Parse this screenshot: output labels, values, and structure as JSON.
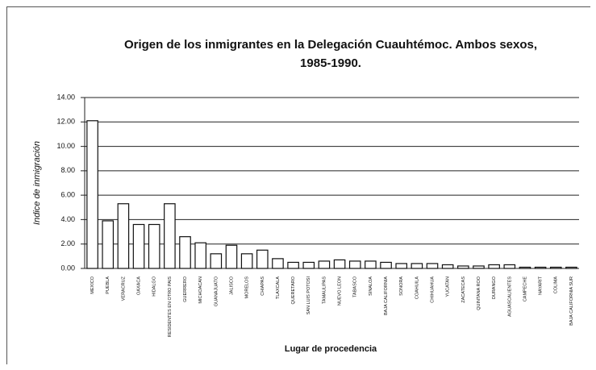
{
  "chart_data": {
    "type": "bar",
    "title": "Origen de los inmigrantes en la Delegación Cuauhtémoc. Ambos sexos, 1985-1990.",
    "y_label": "Indice de inmigración",
    "x_label": "Lugar de procedencia",
    "categories": [
      "MEXICO",
      "PUEBLA",
      "VERACRUZ",
      "OAXACA",
      "HIDALGO",
      "RESIDENTES EN OTRO PAIS",
      "GUERRERO",
      "MICHOACAN",
      "GUANAJUATO",
      "JALISCO",
      "MORELOS",
      "CHIAPAS",
      "TLAXCALA",
      "QUERETARO",
      "SAN LUIS POTOSI",
      "TAMAULIPAS",
      "NUEVO LEON",
      "TABASCO",
      "SINALOA",
      "BAJA CALIFORNIA",
      "SONORA",
      "COAHUILA",
      "CHIHUAHUA",
      "YUCATAN",
      "ZACATECAS",
      "QUINTANA ROO",
      "DURANGO",
      "AGUASCALIENTES",
      "CAMPECHE",
      "NAYARIT",
      "COLIMA",
      "BAJA CALIFORNIA SUR"
    ],
    "values": [
      12.1,
      3.9,
      5.3,
      3.6,
      3.6,
      5.3,
      2.6,
      2.1,
      1.2,
      1.9,
      1.2,
      1.5,
      0.8,
      0.5,
      0.5,
      0.6,
      0.7,
      0.6,
      0.6,
      0.5,
      0.4,
      0.4,
      0.4,
      0.3,
      0.2,
      0.2,
      0.3,
      0.3,
      0.1,
      0.1,
      0.1,
      0.1
    ],
    "color": "#ffffff",
    "ylim": [
      0,
      14
    ],
    "yticks": [
      {
        "value": 0,
        "label": "0.00"
      },
      {
        "value": 2,
        "label": "2.00"
      },
      {
        "value": 4,
        "label": "4.00"
      },
      {
        "value": 6,
        "label": "6.00"
      },
      {
        "value": 8,
        "label": "8.00"
      },
      {
        "value": 10,
        "label": "10.00"
      },
      {
        "value": 12,
        "label": "12.00"
      },
      {
        "value": 14,
        "label": "14.00"
      }
    ],
    "grid": true
  }
}
